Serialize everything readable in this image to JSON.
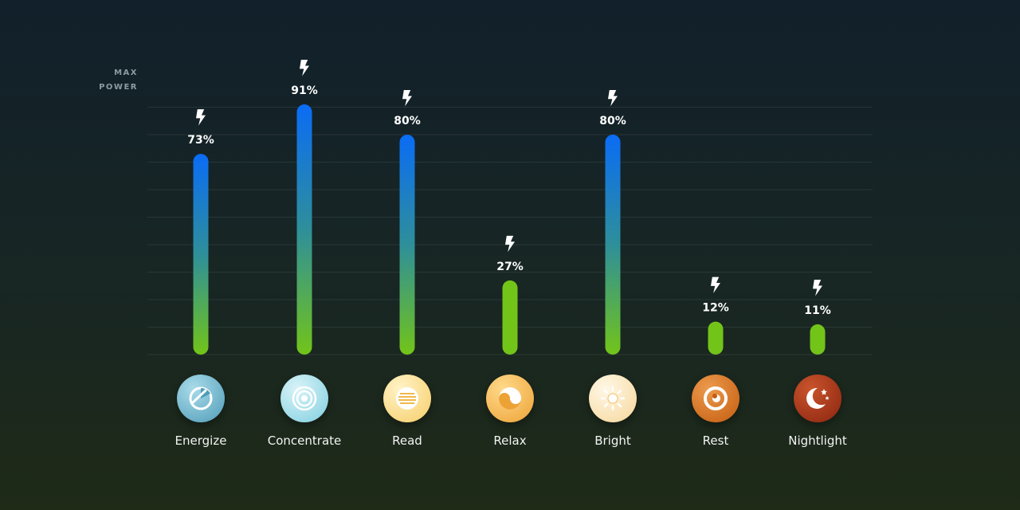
{
  "max_power_label": [
    "MAX",
    "POWER"
  ],
  "chart_data": {
    "type": "bar",
    "title": "",
    "xlabel": "",
    "ylabel": "",
    "ylim": [
      0,
      100
    ],
    "categories": [
      "Energize",
      "Concentrate",
      "Read",
      "Relax",
      "Bright",
      "Rest",
      "Nightlight"
    ],
    "values": [
      73,
      91,
      80,
      27,
      80,
      12,
      11
    ],
    "value_labels": [
      "73%",
      "91%",
      "80%",
      "27%",
      "80%",
      "12%",
      "11%"
    ],
    "grid": true,
    "bar_gradient": [
      "#0a6cf5",
      "#2e8f9a",
      "#72c419"
    ]
  },
  "scenes": [
    {
      "label": "Energize",
      "icon": "energize-icon",
      "color_top": "#a9dbe9",
      "color_bottom": "#4f9cb8"
    },
    {
      "label": "Concentrate",
      "icon": "concentrate-icon",
      "color_top": "#d9f3f8",
      "color_bottom": "#7fcfe0"
    },
    {
      "label": "Read",
      "icon": "read-icon",
      "color_top": "#fff3c7",
      "color_bottom": "#f6cd68"
    },
    {
      "label": "Relax",
      "icon": "relax-icon",
      "color_top": "#ffd98a",
      "color_bottom": "#eda236"
    },
    {
      "label": "Bright",
      "icon": "bright-icon",
      "color_top": "#fff8e6",
      "color_bottom": "#f6d699"
    },
    {
      "label": "Rest",
      "icon": "rest-icon",
      "color_top": "#ec9a4c",
      "color_bottom": "#c45c10"
    },
    {
      "label": "Nightlight",
      "icon": "nightlight-icon",
      "color_top": "#c9542c",
      "color_bottom": "#8a2410"
    }
  ]
}
